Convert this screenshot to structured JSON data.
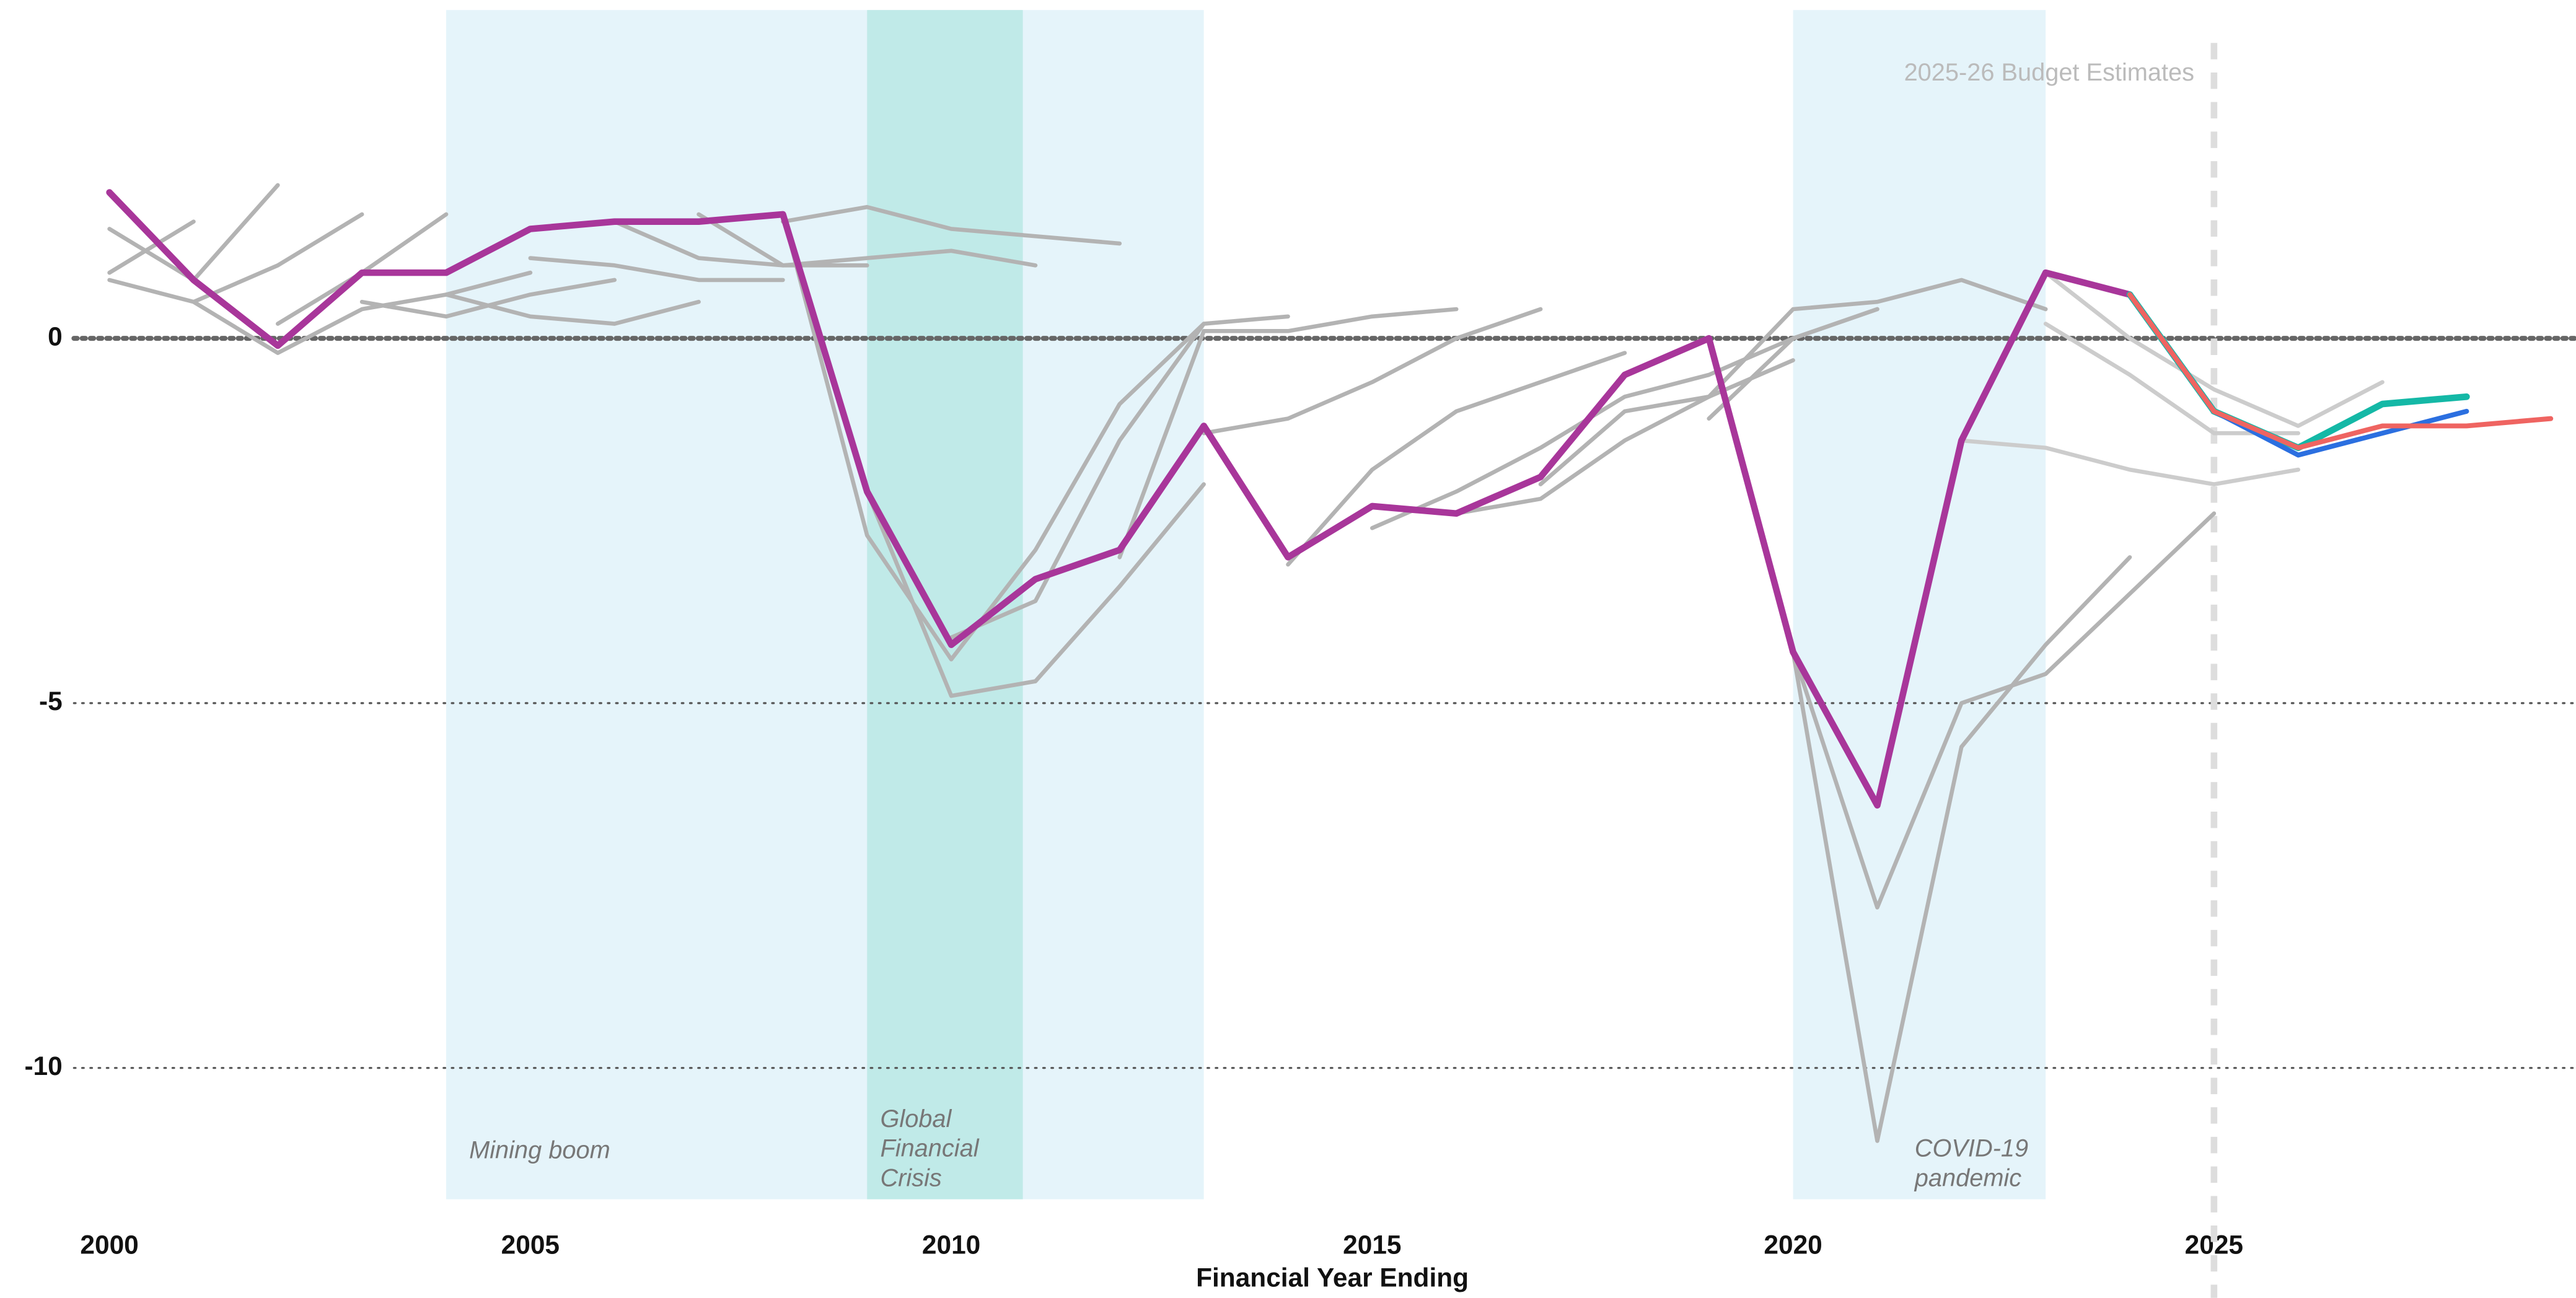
{
  "chart_data": {
    "type": "line",
    "x_label": "Financial Year Ending",
    "xlim": [
      1998.7,
      2029.3
    ],
    "ylim": [
      -11.8,
      4.5
    ],
    "xticks": [
      2000,
      2005,
      2010,
      2015,
      2020,
      2025
    ],
    "yticks": [
      0,
      -5,
      -10
    ],
    "grid": true,
    "bands": [
      {
        "start": 2004,
        "end": 2013,
        "color": "#e5f4fa",
        "label": [
          "Mining boom"
        ]
      },
      {
        "start": 2009,
        "end": 2010.85,
        "color": "#c0eae8",
        "label": [
          "Global",
          "Financial",
          "Crisis"
        ]
      },
      {
        "start": 2020,
        "end": 2023,
        "color": "#e5f4fa",
        "label": [
          "COVID-19",
          "pandemic"
        ]
      }
    ],
    "marker_line": {
      "x": 2025,
      "label": "2025-26 Budget Estimates"
    },
    "series": [
      {
        "color": "#b3b3b3",
        "x": [
          2000,
          2001
        ],
        "values": [
          0.9,
          1.6
        ]
      },
      {
        "color": "#b3b3b3",
        "x": [
          2000,
          2001,
          2002
        ],
        "values": [
          1.5,
          0.8,
          2.1
        ]
      },
      {
        "color": "#b3b3b3",
        "x": [
          2001,
          2002,
          2003
        ],
        "values": [
          0.5,
          1.0,
          1.7
        ]
      },
      {
        "color": "#b3b3b3",
        "x": [
          2002,
          2003,
          2004
        ],
        "values": [
          0.2,
          0.9,
          1.7
        ]
      },
      {
        "color": "#b3b3b3",
        "x": [
          2000,
          2001,
          2002,
          2003,
          2004,
          2005
        ],
        "values": [
          0.8,
          0.5,
          -0.2,
          0.4,
          0.6,
          0.9
        ]
      },
      {
        "color": "#b3b3b3",
        "x": [
          2003,
          2004,
          2005,
          2006
        ],
        "values": [
          0.5,
          0.3,
          0.6,
          0.8
        ]
      },
      {
        "color": "#b3b3b3",
        "x": [
          2004,
          2005,
          2006,
          2007
        ],
        "values": [
          0.6,
          0.3,
          0.2,
          0.5
        ]
      },
      {
        "color": "#b3b3b3",
        "x": [
          2005,
          2006,
          2007,
          2008
        ],
        "values": [
          1.1,
          1.0,
          0.8,
          0.8
        ]
      },
      {
        "color": "#b3b3b3",
        "x": [
          2006,
          2007,
          2008,
          2009
        ],
        "values": [
          1.6,
          1.1,
          1.0,
          1.0
        ]
      },
      {
        "color": "#b3b3b3",
        "x": [
          2007,
          2008,
          2009,
          2010,
          2011
        ],
        "values": [
          1.7,
          1.0,
          1.1,
          1.2,
          1.0
        ]
      },
      {
        "color": "#b3b3b3",
        "x": [
          2008,
          2009,
          2010,
          2011,
          2012
        ],
        "values": [
          1.6,
          1.8,
          1.5,
          1.4,
          1.3
        ]
      },
      {
        "color": "#b3b3b3",
        "x": [
          2008,
          2009,
          2010,
          2011,
          2012,
          2013
        ],
        "values": [
          1.7,
          -2.7,
          -4.4,
          -2.9,
          -0.9,
          0.2
        ]
      },
      {
        "color": "#b3b3b3",
        "x": [
          2009,
          2010,
          2011,
          2012,
          2013
        ],
        "values": [
          -2.1,
          -4.9,
          -4.7,
          -3.4,
          -2.0
        ]
      },
      {
        "color": "#b3b3b3",
        "x": [
          2010,
          2011,
          2012,
          2013,
          2014
        ],
        "values": [
          -4.1,
          -3.6,
          -1.4,
          0.2,
          0.3
        ]
      },
      {
        "color": "#b3b3b3",
        "x": [
          2012,
          2013,
          2014,
          2015,
          2016
        ],
        "values": [
          -3.0,
          0.1,
          0.1,
          0.3,
          0.4
        ]
      },
      {
        "color": "#b3b3b3",
        "x": [
          2013,
          2014,
          2015,
          2016,
          2017
        ],
        "values": [
          -1.3,
          -1.1,
          -0.6,
          0.0,
          0.4
        ]
      },
      {
        "color": "#b3b3b3",
        "x": [
          2014,
          2015,
          2016,
          2017,
          2018
        ],
        "values": [
          -3.1,
          -1.8,
          -1.0,
          -0.6,
          -0.2
        ]
      },
      {
        "color": "#b3b3b3",
        "x": [
          2015,
          2016,
          2017,
          2018,
          2019,
          2020,
          2021
        ],
        "values": [
          -2.6,
          -2.1,
          -1.5,
          -0.8,
          -0.5,
          0.0,
          0.4
        ]
      },
      {
        "color": "#b3b3b3",
        "x": [
          2016,
          2017,
          2018,
          2019,
          2020
        ],
        "values": [
          -2.4,
          -2.2,
          -1.4,
          -0.8,
          -0.3
        ]
      },
      {
        "color": "#b3b3b3",
        "x": [
          2017,
          2018,
          2019,
          2020,
          2021,
          2022,
          2023
        ],
        "values": [
          -2.0,
          -1.0,
          -0.8,
          0.4,
          0.5,
          0.8,
          0.4
        ]
      },
      {
        "color": "#b3b3b3",
        "x": [
          2019,
          2020,
          2021
        ],
        "values": [
          -1.1,
          0.0,
          0.4
        ]
      },
      {
        "color": "#b3b3b3",
        "x": [
          2020,
          2021,
          2022,
          2023,
          2024,
          2025
        ],
        "values": [
          -4.3,
          -7.8,
          -5.0,
          -4.6,
          -3.5,
          -2.4
        ]
      },
      {
        "color": "#b3b3b3",
        "x": [
          2020,
          2021,
          2022,
          2023,
          2024
        ],
        "values": [
          -4.3,
          -11.0,
          -5.6,
          -4.2,
          -3.0
        ]
      },
      {
        "color": "#cccccc",
        "x": [
          2022,
          2023,
          2024,
          2025,
          2026
        ],
        "values": [
          -1.4,
          -1.5,
          -1.8,
          -2.0,
          -1.8
        ]
      },
      {
        "color": "#cccccc",
        "x": [
          2023,
          2024,
          2025,
          2026
        ],
        "values": [
          0.2,
          -0.5,
          -1.3,
          -1.3
        ]
      },
      {
        "color": "#cccccc",
        "x": [
          2023,
          2024,
          2025,
          2026,
          2027
        ],
        "values": [
          0.9,
          0.0,
          -0.7,
          -1.2,
          -0.6
        ]
      },
      {
        "color": "#a8369a",
        "x": [
          2000,
          2001,
          2002,
          2003,
          2004,
          2005,
          2006,
          2007,
          2008,
          2009,
          2010,
          2011,
          2012,
          2013,
          2014,
          2015,
          2016,
          2017,
          2018,
          2019,
          2020,
          2021,
          2022,
          2023,
          2024
        ],
        "values": [
          2.0,
          0.8,
          -0.1,
          0.9,
          0.9,
          1.5,
          1.6,
          1.6,
          1.7,
          -2.1,
          -4.2,
          -3.3,
          -2.9,
          -1.2,
          -3.0,
          -2.3,
          -2.4,
          -1.9,
          -0.5,
          0.0,
          -4.3,
          -6.4,
          -1.4,
          0.9,
          0.6
        ]
      },
      {
        "color": "#14b8a6",
        "x": [
          2024,
          2025,
          2026,
          2027,
          2028
        ],
        "values": [
          0.6,
          -1.0,
          -1.5,
          -0.9,
          -0.8
        ]
      },
      {
        "color": "#2b6fe0",
        "x": [
          2024,
          2025,
          2026,
          2027,
          2028
        ],
        "values": [
          0.6,
          -1.0,
          -1.6,
          -1.3,
          -1.0
        ]
      },
      {
        "color": "#ef6461",
        "x": [
          2024,
          2025,
          2026,
          2027,
          2028,
          2029
        ],
        "values": [
          0.6,
          -1.0,
          -1.5,
          -1.2,
          -1.2,
          -1.1
        ]
      }
    ]
  }
}
